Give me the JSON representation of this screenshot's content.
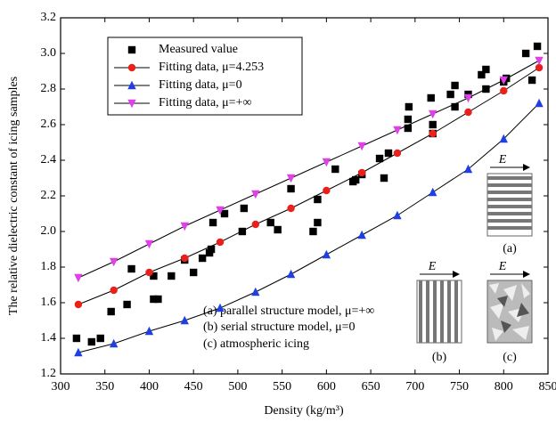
{
  "chart_data": {
    "type": "scatter",
    "y_label": "The relative dielectric constant of icing samples",
    "x_label": "Density (kg/m³)",
    "xlim": [
      300,
      850
    ],
    "xticks": [
      300,
      350,
      400,
      450,
      500,
      550,
      600,
      650,
      700,
      750,
      800,
      850
    ],
    "ylim": [
      1.2,
      3.2
    ],
    "yticks": [
      1.2,
      1.4,
      1.6,
      1.8,
      {
        "value": 2,
        "label": "2.0"
      },
      2.2,
      2.4,
      2.6,
      2.8,
      {
        "value": 3,
        "label": "3.0"
      },
      3.2
    ],
    "legend": "upper left",
    "series": [
      {
        "name": "Measured value",
        "color": "#000000",
        "marker": "square",
        "line": false,
        "x": [
          318,
          335,
          345,
          357,
          375,
          380,
          405,
          405,
          410,
          425,
          440,
          450,
          460,
          468,
          470,
          472,
          485,
          505,
          507,
          537,
          545,
          560,
          585,
          590,
          590,
          610,
          630,
          633,
          640,
          660,
          665,
          670,
          692,
          692,
          693,
          718,
          720,
          720,
          740,
          745,
          745,
          760,
          775,
          780,
          780,
          800,
          803,
          825,
          832,
          838
        ],
        "values": [
          1.4,
          1.38,
          1.4,
          1.55,
          1.59,
          1.79,
          1.75,
          1.62,
          1.62,
          1.75,
          1.84,
          1.77,
          1.85,
          1.88,
          1.9,
          2.05,
          2.1,
          2.0,
          2.13,
          2.05,
          2.01,
          2.24,
          2.0,
          2.05,
          2.18,
          2.35,
          2.28,
          2.29,
          2.32,
          2.41,
          2.3,
          2.44,
          2.58,
          2.63,
          2.7,
          2.75,
          2.55,
          2.6,
          2.77,
          2.7,
          2.82,
          2.77,
          2.88,
          2.8,
          2.91,
          2.84,
          2.86,
          3.0,
          2.85,
          3.04
        ]
      },
      {
        "name": "Fitting data, μ=4.253",
        "color": "#e8211c",
        "marker": "circle",
        "line": true,
        "x": [
          320,
          360,
          400,
          440,
          480,
          520,
          560,
          600,
          640,
          680,
          720,
          760,
          800,
          840
        ],
        "values": [
          1.59,
          1.67,
          1.77,
          1.85,
          1.94,
          2.04,
          2.13,
          2.23,
          2.33,
          2.44,
          2.55,
          2.67,
          2.79,
          2.92
        ]
      },
      {
        "name": "Fitting data, μ=0",
        "color": "#1f3fe0",
        "marker": "triangle",
        "line": true,
        "x": [
          320,
          360,
          400,
          440,
          480,
          520,
          560,
          600,
          640,
          680,
          720,
          760,
          800,
          840
        ],
        "values": [
          1.32,
          1.37,
          1.44,
          1.5,
          1.57,
          1.66,
          1.76,
          1.87,
          1.98,
          2.09,
          2.22,
          2.35,
          2.52,
          2.72
        ]
      },
      {
        "name": "Fitting data, μ=+∞",
        "color": "#e040e8",
        "marker": "triangle-down",
        "line": true,
        "x": [
          320,
          360,
          400,
          440,
          480,
          520,
          560,
          600,
          640,
          680,
          720,
          760,
          800,
          840
        ],
        "values": [
          1.74,
          1.83,
          1.93,
          2.03,
          2.12,
          2.21,
          2.3,
          2.39,
          2.48,
          2.57,
          2.66,
          2.75,
          2.85,
          2.96
        ]
      }
    ],
    "annotations": [
      "(a) parallel structure model, μ=+∞",
      "(b) serial structure model, μ=0",
      "(c) atmospheric icing"
    ],
    "inset_labels": [
      "(a)",
      "(b)",
      "(c)"
    ],
    "field_label": "E"
  }
}
